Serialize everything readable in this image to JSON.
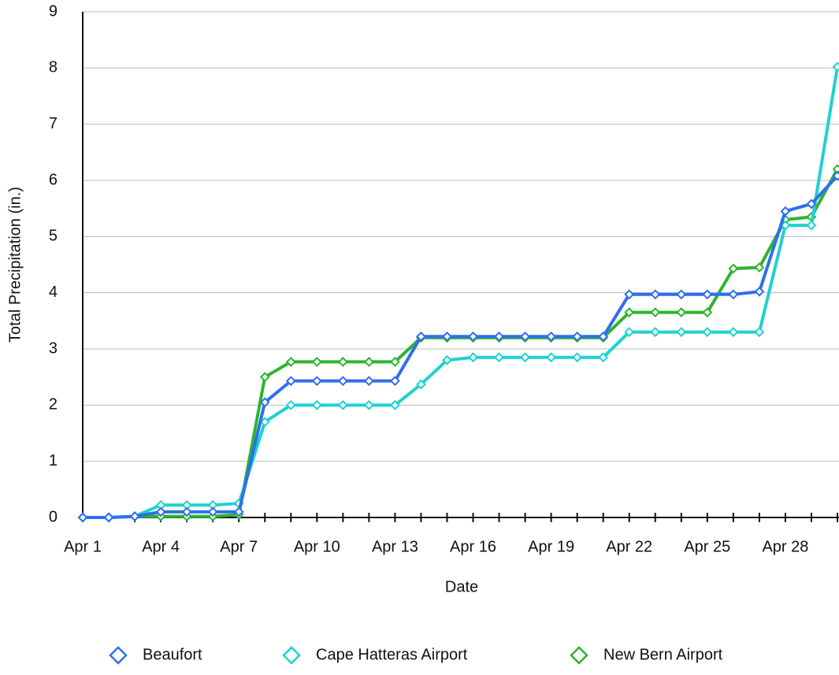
{
  "chart_data": {
    "type": "line",
    "xlabel": "Date",
    "ylabel": "Total Precipitation (in.)",
    "categories": [
      "Apr 1",
      null,
      null,
      "Apr 4",
      null,
      null,
      "Apr 7",
      null,
      null,
      "Apr 10",
      null,
      null,
      "Apr 13",
      null,
      null,
      "Apr 16",
      null,
      null,
      "Apr 19",
      null,
      null,
      "Apr 22",
      null,
      null,
      "Apr 25",
      null,
      null,
      "Apr 28",
      null,
      null
    ],
    "series": [
      {
        "name": "New Bern Airport",
        "color": "#2db52d",
        "values": [
          0,
          0,
          0.02,
          0.02,
          0.02,
          0.02,
          0.05,
          2.5,
          2.77,
          2.77,
          2.77,
          2.77,
          2.77,
          3.2,
          3.2,
          3.2,
          3.2,
          3.2,
          3.2,
          3.2,
          3.2,
          3.65,
          3.65,
          3.65,
          3.65,
          4.43,
          4.45,
          5.3,
          5.35,
          6.2
        ]
      },
      {
        "name": "Cape Hatteras Airport",
        "color": "#1fd1d1",
        "values": [
          0,
          0,
          0.02,
          0.22,
          0.22,
          0.22,
          0.25,
          1.7,
          2.0,
          2.0,
          2.0,
          2.0,
          2.0,
          2.37,
          2.8,
          2.85,
          2.85,
          2.85,
          2.85,
          2.85,
          2.85,
          3.3,
          3.3,
          3.3,
          3.3,
          3.3,
          3.3,
          5.2,
          5.2,
          8.02
        ]
      },
      {
        "name": "Beaufort",
        "color": "#2e6fef",
        "values": [
          0,
          0,
          0.02,
          0.1,
          0.1,
          0.1,
          0.1,
          2.05,
          2.43,
          2.43,
          2.43,
          2.43,
          2.43,
          3.22,
          3.22,
          3.22,
          3.22,
          3.22,
          3.22,
          3.22,
          3.22,
          3.97,
          3.97,
          3.97,
          3.97,
          3.97,
          4.02,
          5.45,
          5.58,
          6.08
        ]
      }
    ],
    "legend_order": [
      2,
      1,
      0
    ],
    "ylim": [
      0,
      9
    ],
    "yticks": [
      0,
      1,
      2,
      3,
      4,
      5,
      6,
      7,
      8,
      9
    ],
    "grid": true,
    "legend": "bottom"
  }
}
